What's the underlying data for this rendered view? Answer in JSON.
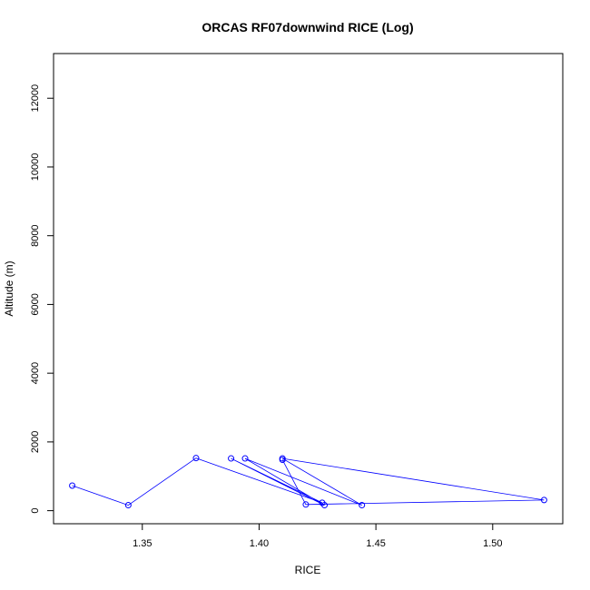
{
  "chart_data": {
    "type": "line",
    "title": "ORCAS RF07downwind RICE (Log)",
    "xlabel": "RICE",
    "ylabel": "Altitude (m)",
    "xlim": [
      1.312,
      1.53
    ],
    "ylim": [
      -380,
      13300
    ],
    "xticks": [
      1.35,
      1.4,
      1.45,
      1.5
    ],
    "xtick_labels": [
      "1.35",
      "1.40",
      "1.45",
      "1.50"
    ],
    "yticks": [
      0,
      2000,
      4000,
      6000,
      8000,
      10000,
      12000
    ],
    "ytick_labels": [
      "0",
      "2000",
      "4000",
      "6000",
      "8000",
      "10000",
      "12000"
    ],
    "grid": false,
    "line_color": "#0000ff",
    "marker": "open-circle",
    "series": [
      {
        "x": [
          1.32,
          1.344,
          1.373,
          1.427,
          1.388,
          1.428,
          1.394,
          1.444,
          1.41,
          1.522,
          1.42,
          1.41
        ],
        "y": [
          730,
          160,
          1530,
          230,
          1520,
          160,
          1520,
          160,
          1520,
          310,
          180,
          1480
        ]
      }
    ]
  }
}
